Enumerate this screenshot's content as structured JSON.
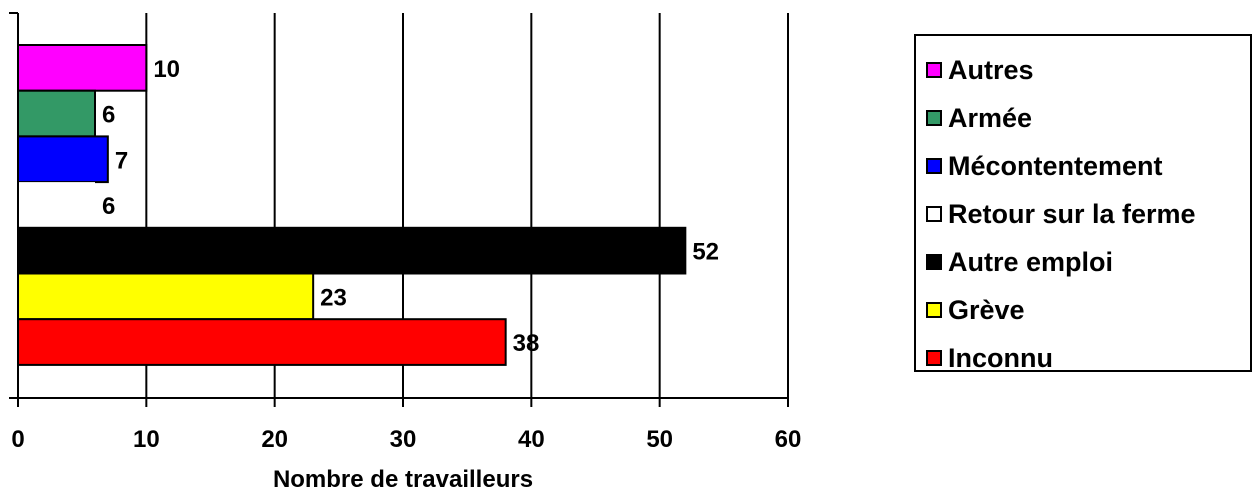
{
  "chart_data": {
    "type": "bar",
    "orientation": "horizontal",
    "title": "",
    "xlabel": "Nombre de travailleurs",
    "ylabel": "",
    "xlim": [
      0,
      60
    ],
    "x_ticks": [
      0,
      10,
      20,
      30,
      40,
      50,
      60
    ],
    "grid": "vertical major gridlines",
    "legend_position": "right",
    "categories": [
      "Autres",
      "Armée",
      "Mécontentement",
      "Retour sur la ferme",
      "Autre emploi",
      "Grève",
      "Inconnu"
    ],
    "values": [
      10,
      6,
      7,
      6,
      52,
      23,
      38
    ],
    "colors": [
      "#ff00ff",
      "#339966",
      "#0000ff",
      "#ffffff",
      "#000000",
      "#ffff00",
      "#ff0000"
    ],
    "data_labels": [
      "10",
      "6",
      "7",
      "6",
      "52",
      "23",
      "38"
    ]
  }
}
